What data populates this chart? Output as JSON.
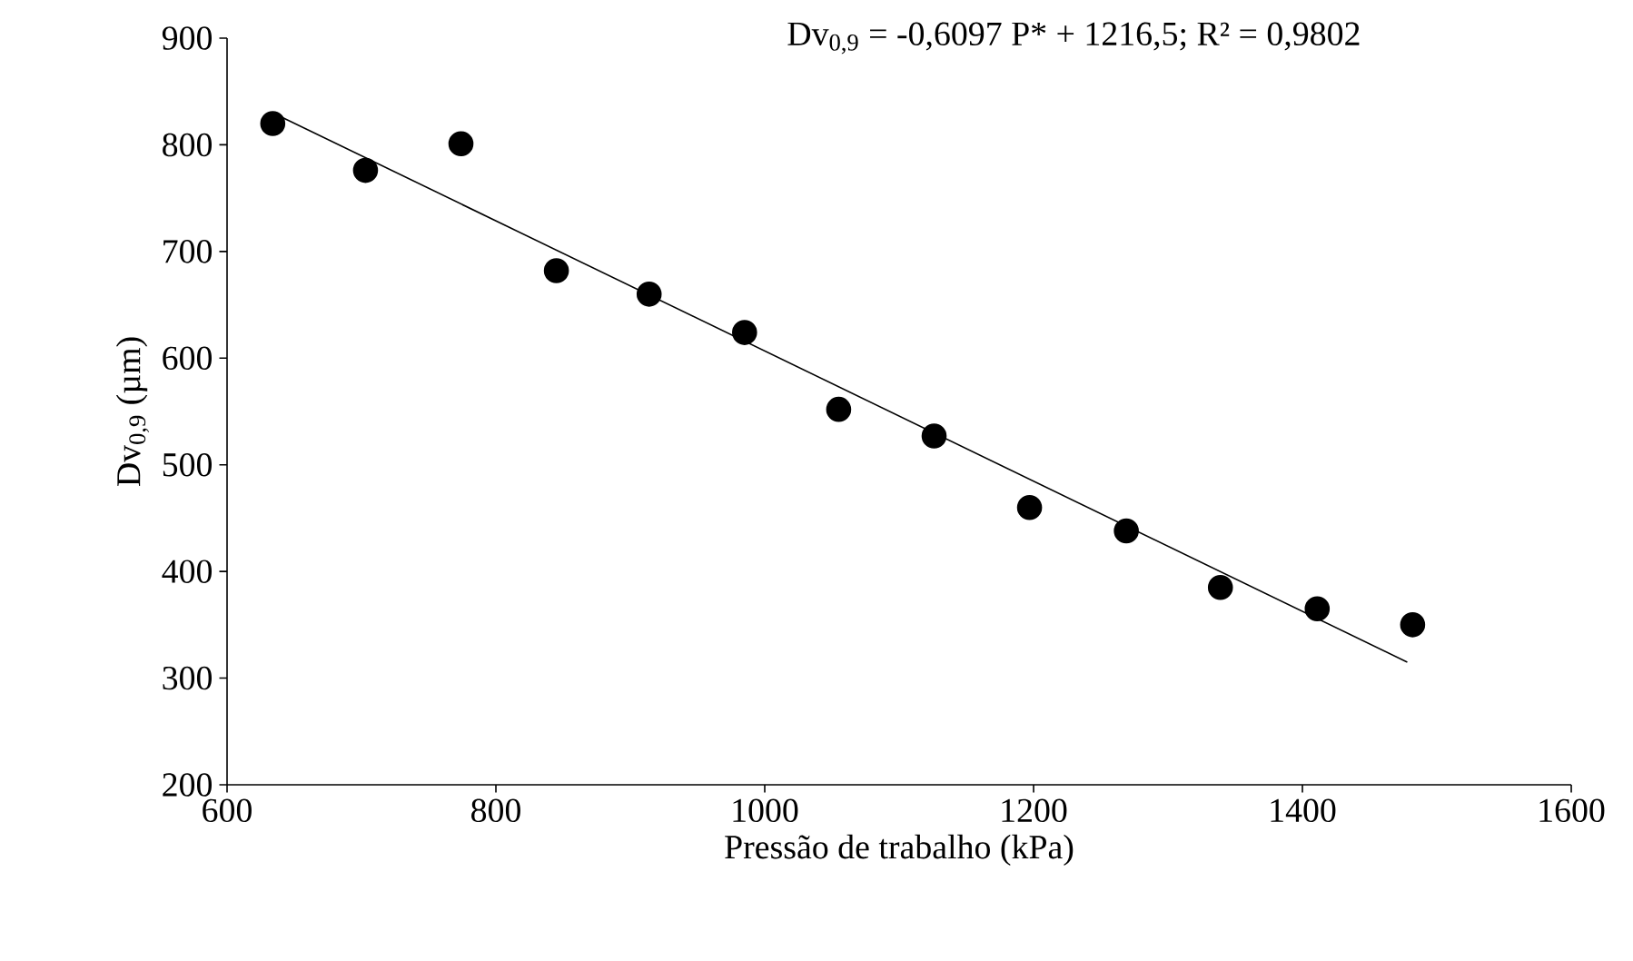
{
  "chart_data": {
    "type": "scatter",
    "xlabel": "Pressão de trabalho (kPa)",
    "ylabel": "Dv$_{0,9}$ (µm)",
    "annotations": [
      "Dv$_{0,9}$ = -0,6097 P* + 1216,5; R² = 0,9802"
    ],
    "xlim": [
      600,
      1600
    ],
    "ylim": [
      200,
      900
    ],
    "xticks": [
      600,
      800,
      1000,
      1200,
      1400,
      1600
    ],
    "yticks": [
      200,
      300,
      400,
      500,
      600,
      700,
      800,
      900
    ],
    "series": [
      {
        "color": "#000000",
        "marker": "circle",
        "x": [
          634,
          703,
          774,
          845,
          914,
          985,
          1055,
          1126,
          1197,
          1269,
          1339,
          1411,
          1482
        ],
        "values": [
          820,
          776,
          801,
          682,
          660,
          624,
          552,
          527,
          460,
          438,
          385,
          365,
          350
        ]
      },
      {
        "type": "line",
        "color": "#000000",
        "marker": "none",
        "line_style": "solid",
        "x": [
          634,
          1478
        ],
        "values": [
          830,
          315
        ]
      }
    ]
  }
}
